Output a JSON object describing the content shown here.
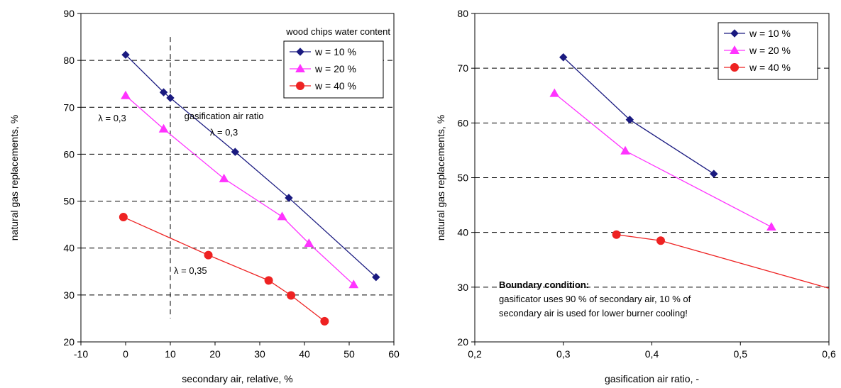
{
  "colors": {
    "w10": "#1a1a80",
    "w20": "#ff33ff",
    "w40": "#ee2222"
  },
  "chart_data": [
    {
      "type": "line",
      "xlabel": "secondary air, relative, %",
      "ylabel": "natural gas replacements, %",
      "xlim": [
        -10,
        60
      ],
      "ylim": [
        20,
        90
      ],
      "x_ticks": [
        "-10",
        "0",
        "10",
        "20",
        "30",
        "40",
        "50",
        "60"
      ],
      "y_ticks": [
        "20",
        "30",
        "40",
        "50",
        "60",
        "70",
        "80",
        "90"
      ],
      "grid": "horizontal dashed",
      "legend_title": "wood chips water content",
      "legend_position": "top-right",
      "series": [
        {
          "name": "w = 10 %",
          "marker": "diamond",
          "points": [
            [
              0,
              81.2
            ],
            [
              8.5,
              73.2
            ],
            [
              10,
              72
            ],
            [
              24.5,
              60.5
            ],
            [
              36.5,
              50.7
            ],
            [
              56,
              33.8
            ]
          ]
        },
        {
          "name": "w = 20 %",
          "marker": "triangle",
          "points": [
            [
              0,
              72.5
            ],
            [
              8.5,
              65.4
            ],
            [
              22,
              54.8
            ],
            [
              35,
              46.7
            ],
            [
              41,
              41
            ],
            [
              51,
              32.2
            ]
          ]
        },
        {
          "name": "w = 40 %",
          "marker": "circle",
          "points": [
            [
              -0.5,
              46.6
            ],
            [
              18.5,
              38.5
            ],
            [
              32,
              33.1
            ],
            [
              37,
              29.9
            ],
            [
              44.5,
              24.4
            ]
          ]
        }
      ],
      "vline_x": 10,
      "annotations": [
        {
          "text": "λ = 0,3",
          "x": -3,
          "y": 67
        },
        {
          "text": "gasification air ratio",
          "x": 22,
          "y": 67.5
        },
        {
          "text": "λ = 0,3",
          "x": 22,
          "y": 64
        },
        {
          "text": "λ = 0,35",
          "x": 14.5,
          "y": 34.5
        }
      ]
    },
    {
      "type": "line",
      "xlabel": "gasification air ratio, -",
      "ylabel": "natural gas replacements, %",
      "xlim": [
        0.2,
        0.6
      ],
      "ylim": [
        20,
        80
      ],
      "x_ticks": [
        "0,2",
        "0,3",
        "0,4",
        "0,5",
        "0,6"
      ],
      "y_ticks": [
        "20",
        "30",
        "40",
        "50",
        "60",
        "70",
        "80"
      ],
      "grid": "horizontal dashed",
      "legend_position": "top-right",
      "series": [
        {
          "name": "w = 10 %",
          "marker": "diamond",
          "points": [
            [
              0.3,
              72
            ],
            [
              0.375,
              60.6
            ],
            [
              0.47,
              50.7
            ]
          ]
        },
        {
          "name": "w = 20 %",
          "marker": "triangle",
          "points": [
            [
              0.29,
              65.4
            ],
            [
              0.37,
              54.9
            ],
            [
              0.535,
              41
            ]
          ]
        },
        {
          "name": "w = 40 %",
          "marker": "circle",
          "points": [
            [
              0.36,
              39.6
            ],
            [
              0.41,
              38.5
            ],
            [
              0.6,
              29.8
            ]
          ],
          "marker_count": 2
        }
      ],
      "boundary_note": {
        "title": "Boundary condition:",
        "line1": "gasificator uses 90 % of secondary air, 10 % of",
        "line2": "secondary air is used for lower burner cooling!"
      }
    }
  ]
}
